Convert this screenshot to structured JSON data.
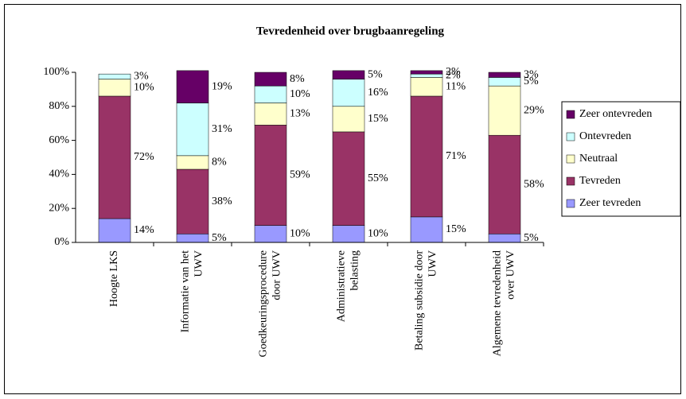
{
  "chart_data": {
    "type": "stacked_bar",
    "title": "Tevredenheid over brugbaanregeling",
    "categories": [
      "Hoogte LKS",
      "Informatie van het\nUWV",
      "Goedkeuringsprocedure\ndoor UWV",
      "Administratieve\nbelasting",
      "Betaling subsidie door\nUWV",
      "Algemene tevredenheid\nover UWV"
    ],
    "series": [
      {
        "name": "Zeer tevreden",
        "color": "#9999ff",
        "values": [
          14,
          5,
          10,
          10,
          15,
          5
        ],
        "value_labels": [
          "14%",
          "5%",
          "10%",
          "10%",
          "15%",
          "5%"
        ]
      },
      {
        "name": "Tevreden",
        "color": "#993366",
        "values": [
          72,
          38,
          59,
          55,
          71,
          58
        ],
        "value_labels": [
          "72%",
          "38%",
          "59%",
          "55%",
          "71%",
          "58%"
        ]
      },
      {
        "name": "Neutraal",
        "color": "#ffffcc",
        "values": [
          10,
          8,
          13,
          15,
          11,
          29
        ],
        "value_labels": [
          "10%",
          "8%",
          "13%",
          "15%",
          "11%",
          "29%"
        ]
      },
      {
        "name": "Ontevreden",
        "color": "#ccffff",
        "values": [
          3,
          31,
          10,
          16,
          2,
          5
        ],
        "value_labels": [
          "3%",
          "31%",
          "10%",
          "16%",
          "2%",
          "5%"
        ]
      },
      {
        "name": "Zeer ontevreden",
        "color": "#660066",
        "values": [
          null,
          19,
          8,
          5,
          2,
          3
        ],
        "value_labels": [
          null,
          "19%",
          "8%",
          "5%",
          "2%",
          "3%"
        ]
      }
    ],
    "ylim": [
      0,
      100
    ],
    "yticks": [
      {
        "value": 0,
        "label": "0%"
      },
      {
        "value": 20,
        "label": "20%"
      },
      {
        "value": 40,
        "label": "40%"
      },
      {
        "value": 60,
        "label": "60%"
      },
      {
        "value": 80,
        "label": "80%"
      },
      {
        "value": 100,
        "label": "100%"
      }
    ],
    "legend": "right"
  }
}
